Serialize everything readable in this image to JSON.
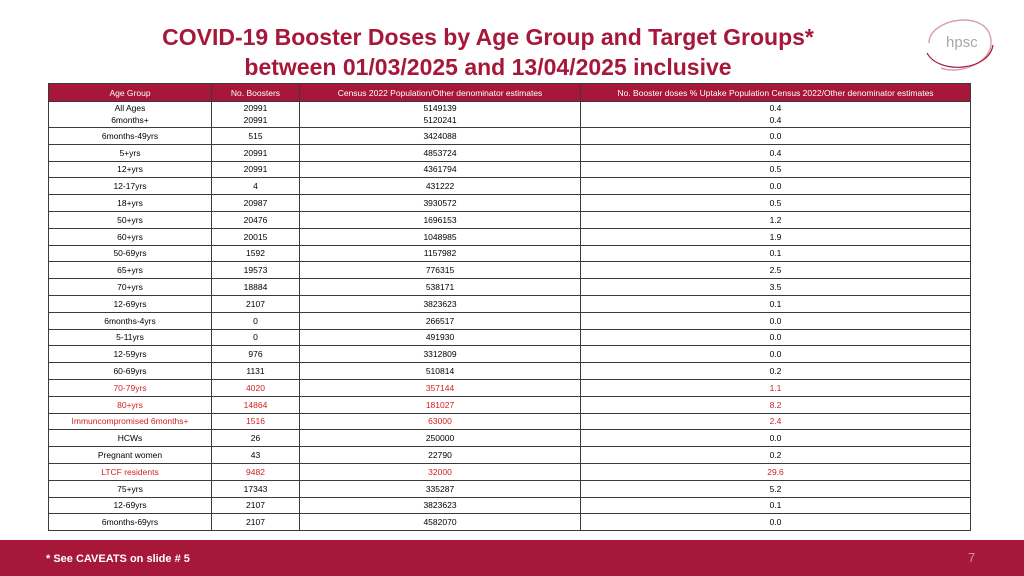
{
  "title": {
    "line1": "COVID-19 Booster Doses by Age Group and Target Groups*",
    "line2": "between 01/03/2025 and 13/04/2025 inclusive"
  },
  "logo": {
    "text": "hpsc"
  },
  "table": {
    "headers": [
      "Age Group",
      "No. Boosters",
      "Census 2022 Population/Other denominator estimates",
      "No. Booster doses % Uptake Population Census 2022/Other denominator estimates"
    ],
    "rows": [
      {
        "group": "All Ages",
        "boosters": "20991",
        "population": "5149139",
        "uptake": "0.4",
        "highlight": false
      },
      {
        "group": "6months+",
        "boosters": "20991",
        "population": "5120241",
        "uptake": "0.4",
        "highlight": false
      },
      {
        "group": "6months-49yrs",
        "boosters": "515",
        "population": "3424088",
        "uptake": "0.0",
        "highlight": false
      },
      {
        "group": "5+yrs",
        "boosters": "20991",
        "population": "4853724",
        "uptake": "0.4",
        "highlight": false
      },
      {
        "group": "12+yrs",
        "boosters": "20991",
        "population": "4361794",
        "uptake": "0.5",
        "highlight": false
      },
      {
        "group": "12-17yrs",
        "boosters": "4",
        "population": "431222",
        "uptake": "0.0",
        "highlight": false
      },
      {
        "group": "18+yrs",
        "boosters": "20987",
        "population": "3930572",
        "uptake": "0.5",
        "highlight": false
      },
      {
        "group": "50+yrs",
        "boosters": "20476",
        "population": "1696153",
        "uptake": "1.2",
        "highlight": false
      },
      {
        "group": "60+yrs",
        "boosters": "20015",
        "population": "1048985",
        "uptake": "1.9",
        "highlight": false
      },
      {
        "group": "50-69yrs",
        "boosters": "1592",
        "population": "1157982",
        "uptake": "0.1",
        "highlight": false
      },
      {
        "group": "65+yrs",
        "boosters": "19573",
        "population": "776315",
        "uptake": "2.5",
        "highlight": false
      },
      {
        "group": "70+yrs",
        "boosters": "18884",
        "population": "538171",
        "uptake": "3.5",
        "highlight": false
      },
      {
        "group": "12-69yrs",
        "boosters": "2107",
        "population": "3823623",
        "uptake": "0.1",
        "highlight": false
      },
      {
        "group": "6months-4yrs",
        "boosters": "0",
        "population": "266517",
        "uptake": "0.0",
        "highlight": false
      },
      {
        "group": "5-11yrs",
        "boosters": "0",
        "population": "491930",
        "uptake": "0.0",
        "highlight": false
      },
      {
        "group": "12-59yrs",
        "boosters": "976",
        "population": "3312809",
        "uptake": "0.0",
        "highlight": false
      },
      {
        "group": "60-69yrs",
        "boosters": "1131",
        "population": "510814",
        "uptake": "0.2",
        "highlight": false
      },
      {
        "group": "70-79yrs",
        "boosters": "4020",
        "population": "357144",
        "uptake": "1.1",
        "highlight": true
      },
      {
        "group": "80+yrs",
        "boosters": "14864",
        "population": "181027",
        "uptake": "8.2",
        "highlight": true
      },
      {
        "group": "Immuncompromised 6months+",
        "boosters": "1516",
        "population": "63000",
        "uptake": "2.4",
        "highlight": true
      },
      {
        "group": "HCWs",
        "boosters": "26",
        "population": "250000",
        "uptake": "0.0",
        "highlight": false
      },
      {
        "group": "Pregnant women",
        "boosters": "43",
        "population": "22790",
        "uptake": "0.2",
        "highlight": false
      },
      {
        "group": "LTCF residents",
        "boosters": "9482",
        "population": "32000",
        "uptake": "29.6",
        "highlight": true
      },
      {
        "group": "75+yrs",
        "boosters": "17343",
        "population": "335287",
        "uptake": "5.2",
        "highlight": false
      },
      {
        "group": "12-69yrs",
        "boosters": "2107",
        "population": "3823623",
        "uptake": "0.1",
        "highlight": false
      },
      {
        "group": "6months-69yrs",
        "boosters": "2107",
        "population": "4582070",
        "uptake": "0.0",
        "highlight": false
      }
    ]
  },
  "footer": {
    "note": "* See CAVEATS on slide # 5",
    "page": "7"
  },
  "colors": {
    "accent": "#a6173a",
    "highlight_text": "#d11f1f",
    "logo_gray": "#a7a7a7"
  }
}
